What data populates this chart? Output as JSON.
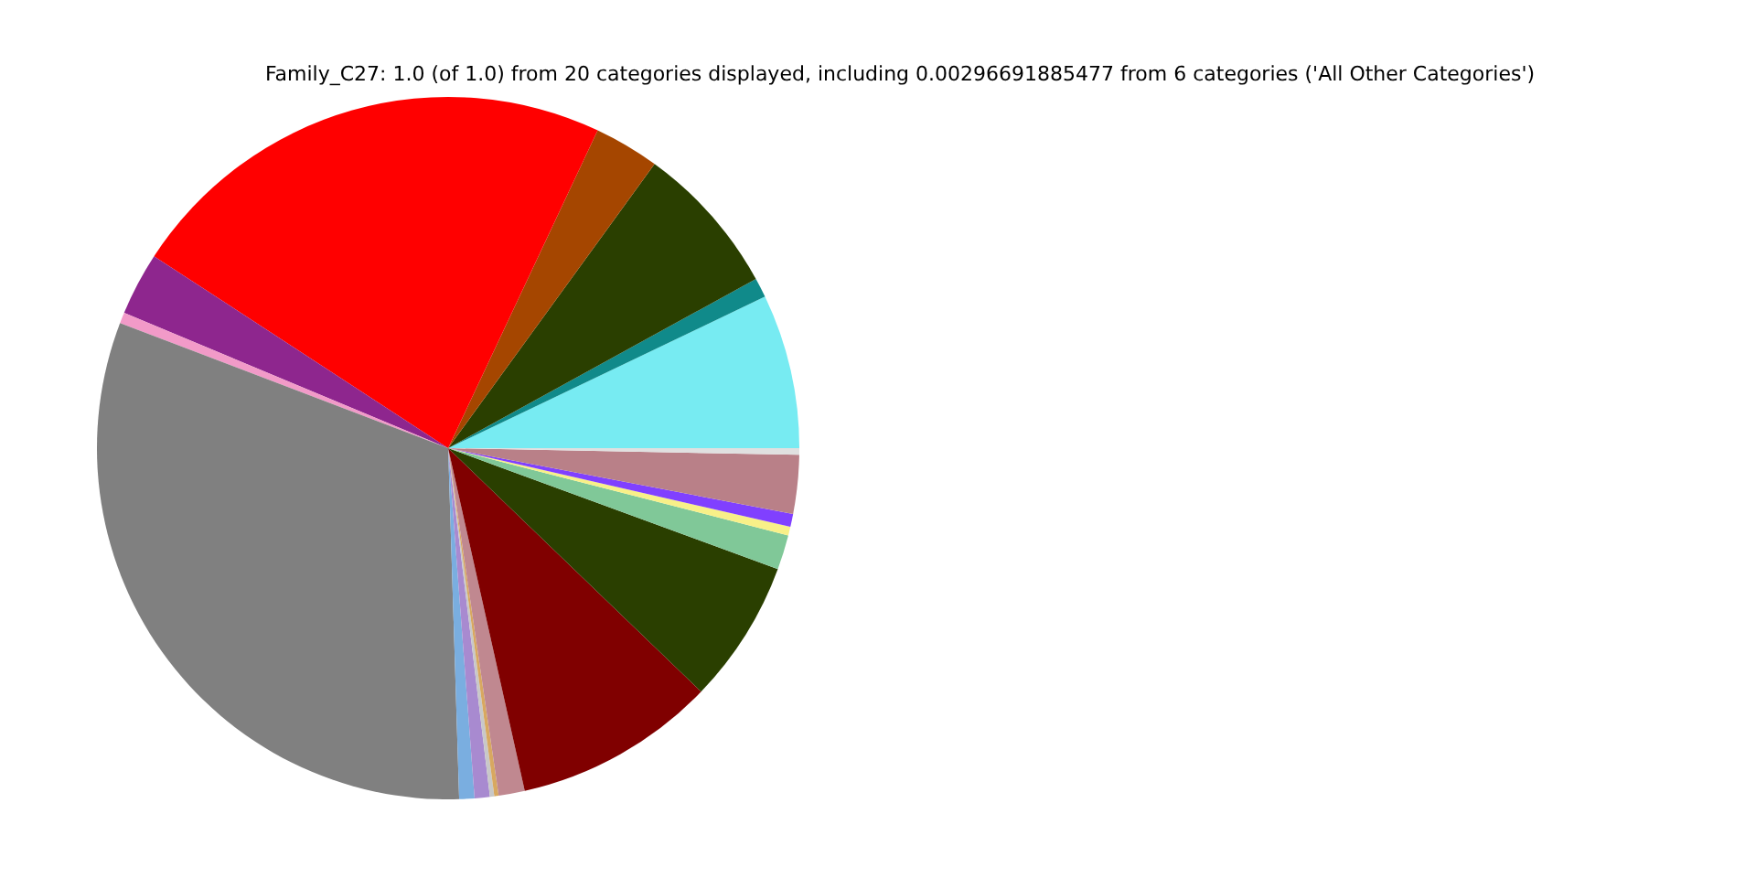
{
  "chart_data": {
    "type": "pie",
    "title": "Family_C27: 1.0 (of 1.0) from 20 categories displayed, including 0.00296691885477 from 6 categories ('All Other Categories')",
    "categories": [
      null,
      null,
      null,
      null,
      null,
      null,
      null,
      null,
      null,
      null,
      null,
      null,
      null,
      null,
      null,
      null,
      null,
      null,
      null,
      null
    ],
    "values": [
      7.1,
      0.9,
      7.0,
      3.0,
      22.8,
      2.9,
      0.5,
      31.3,
      0.7,
      0.7,
      0.2,
      0.2,
      1.2,
      9.3,
      6.6,
      1.6,
      0.4,
      0.6,
      2.7,
      0.3
    ],
    "colors": [
      "#77ebf2",
      "#108a8a",
      "#2a3f00",
      "#a54600",
      "#ff0000",
      "#8e268e",
      "#f29ac8",
      "#808080",
      "#7aaee0",
      "#a88ad0",
      "#c8c8c8",
      "#d8a860",
      "#c08890",
      "#800000",
      "#2a3f00",
      "#80c898",
      "#f8f088",
      "#8040ff",
      "#b98088",
      "#e0e0e0"
    ]
  }
}
